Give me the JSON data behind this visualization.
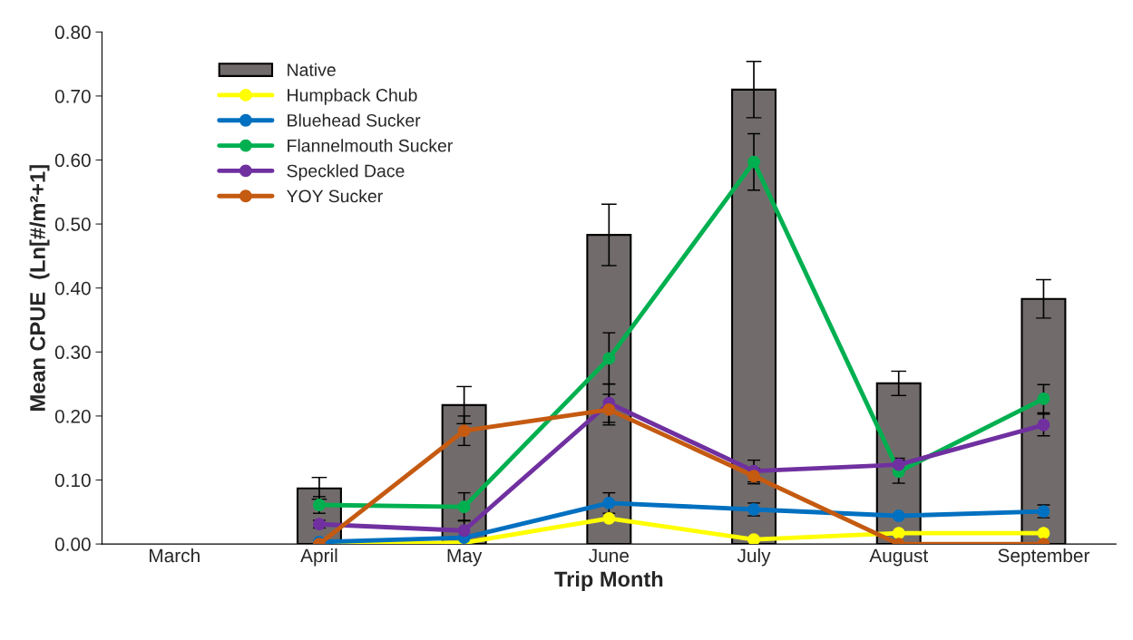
{
  "chart_data": {
    "type": "bar",
    "xlabel": "Trip Month",
    "ylabel": "Mean CPUE  (Ln[#/m²+1]",
    "categories": [
      "March",
      "April",
      "May",
      "June",
      "July",
      "August",
      "September"
    ],
    "ylim": [
      0,
      0.8
    ],
    "yticks": [
      {
        "value": 0,
        "label": "0.00"
      },
      {
        "value": 0.1,
        "label": "0.10"
      },
      {
        "value": 0.2,
        "label": "0.20"
      },
      {
        "value": 0.3,
        "label": "0.30"
      },
      {
        "value": 0.4,
        "label": "0.40"
      },
      {
        "value": 0.5,
        "label": "0.50"
      },
      {
        "value": 0.6,
        "label": "0.60"
      },
      {
        "value": 0.7,
        "label": "0.70"
      },
      {
        "value": 0.8,
        "label": "0.80"
      }
    ],
    "grid": false,
    "legend": "top left",
    "marker": "circle",
    "line_style": "solid",
    "series": [
      {
        "name": "Native",
        "color": "#716c6b",
        "values": [
          null,
          0.087,
          0.217,
          0.483,
          0.71,
          0.251,
          0.383
        ],
        "errors": [
          null,
          0.017,
          0.029,
          0.048,
          0.044,
          0.019,
          0.03
        ]
      },
      {
        "name": "Humpback Chub",
        "type": "line",
        "color": "#ffff00",
        "values": [
          null,
          0.0,
          0.002,
          0.04,
          0.007,
          0.017,
          0.017
        ],
        "errors": [
          null,
          null,
          null,
          null,
          null,
          null,
          null
        ]
      },
      {
        "name": "Bluehead Sucker",
        "type": "line",
        "color": "#0070c0",
        "values": [
          null,
          0.003,
          0.01,
          0.064,
          0.054,
          0.044,
          0.051
        ],
        "errors": [
          null,
          null,
          null,
          0.016,
          0.01,
          null,
          0.01
        ]
      },
      {
        "name": "Flannelmouth Sucker",
        "type": "line",
        "color": "#00b050",
        "values": [
          null,
          0.061,
          0.058,
          0.29,
          0.597,
          0.113,
          0.227
        ],
        "errors": [
          null,
          0.013,
          0.022,
          0.04,
          0.044,
          0.018,
          0.022
        ]
      },
      {
        "name": "Speckled Dace",
        "type": "line",
        "color": "#7030a0",
        "values": [
          null,
          0.031,
          0.021,
          0.22,
          0.114,
          0.124,
          0.186
        ],
        "errors": [
          null,
          0.006,
          0.016,
          0.03,
          0.017,
          0.01,
          0.017
        ]
      },
      {
        "name": "YOY Sucker",
        "type": "line",
        "color": "#c55a11",
        "values": [
          null,
          0.0,
          0.177,
          0.21,
          0.106,
          0.0,
          0.0
        ],
        "errors": [
          null,
          null,
          0.023,
          0.024,
          0.012,
          null,
          null
        ]
      }
    ]
  }
}
